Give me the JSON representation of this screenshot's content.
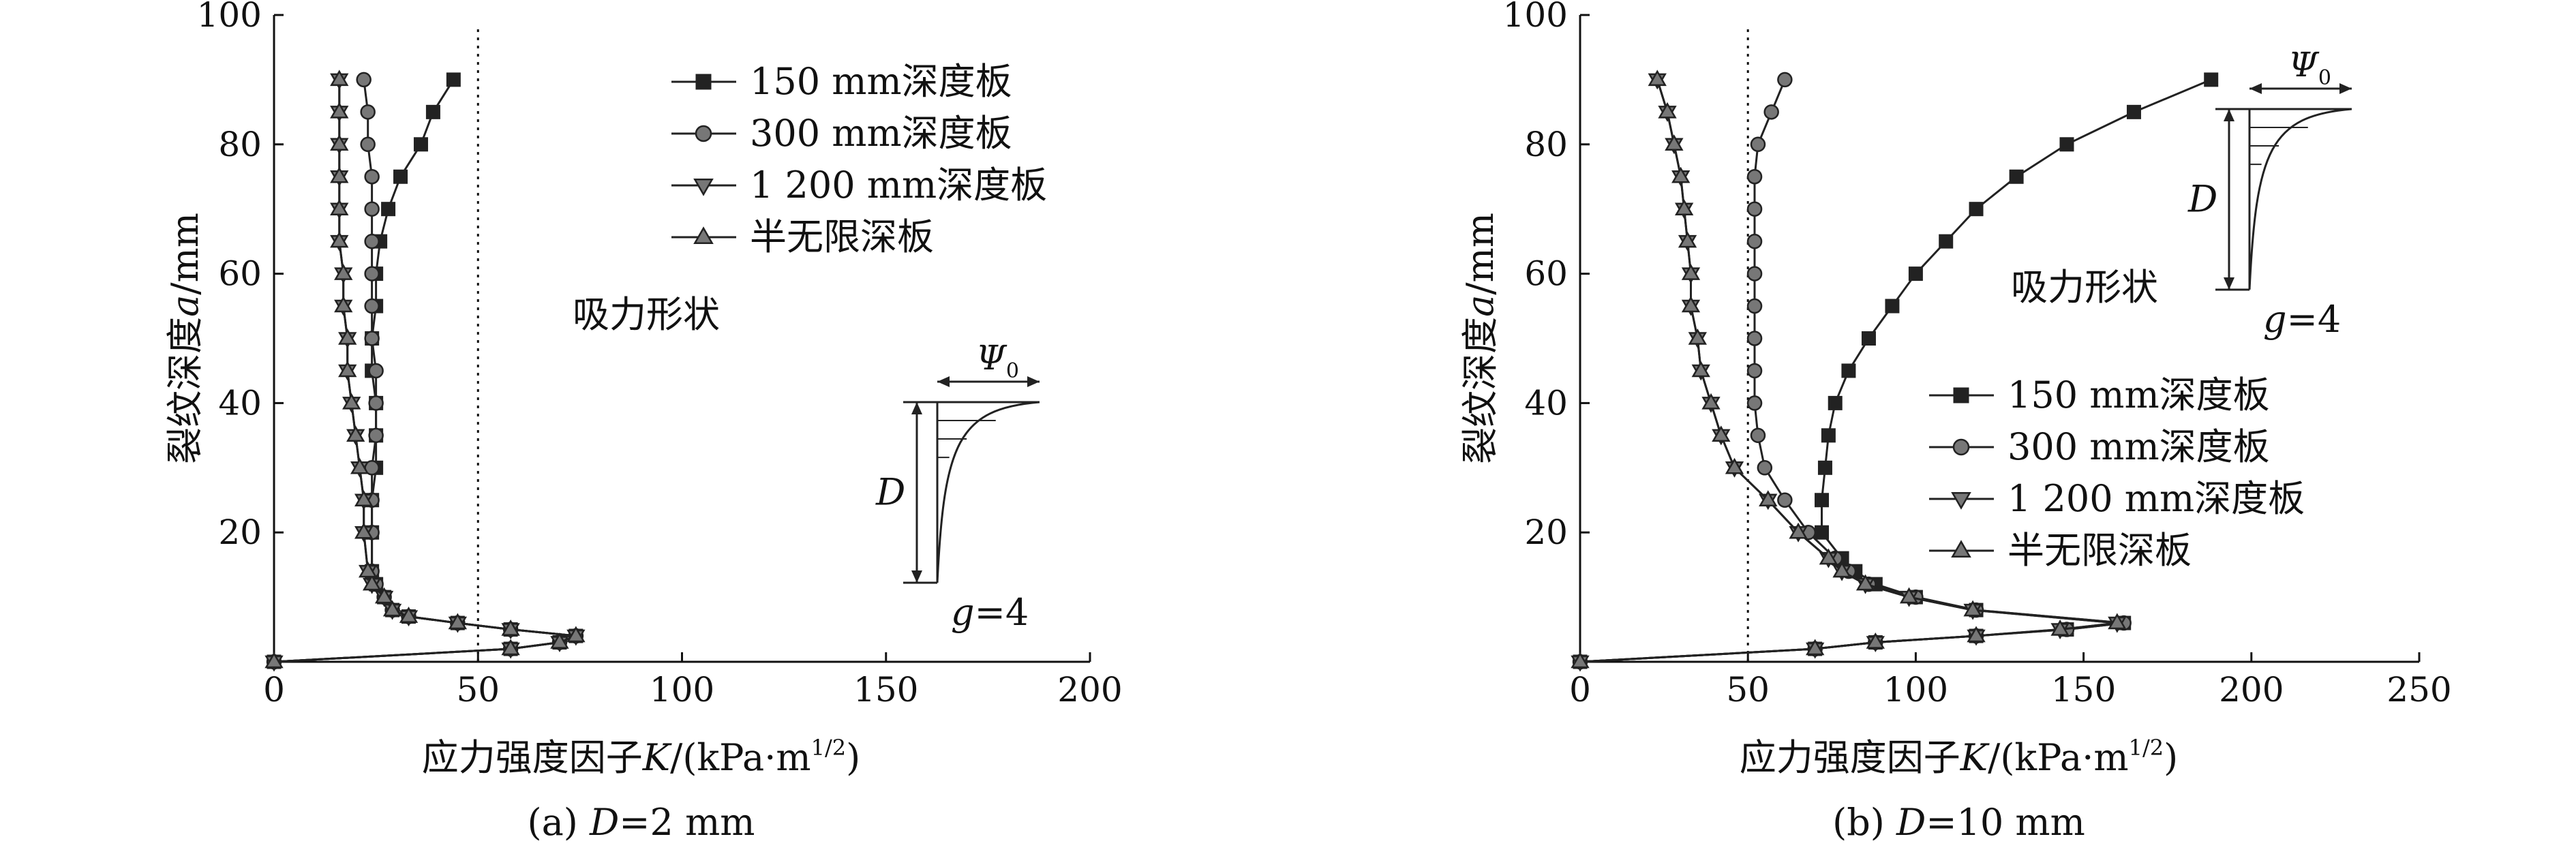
{
  "colors": {
    "axis": "#111111",
    "marker_fill": "#777777",
    "line": "#222222",
    "background": "#ffffff"
  },
  "chart_data": [
    {
      "type": "line",
      "panel": "a",
      "caption": {
        "prefix": "(a) ",
        "var": "D",
        "rest": "=2 mm"
      },
      "xlabel": {
        "main": "应力强度因子",
        "var": "K",
        "unit": "/(kPa·m",
        "sup": "1/2",
        "close": ")"
      },
      "ylabel": {
        "main": "裂纹深度",
        "var": "a",
        "unit": "/mm"
      },
      "xlim": [
        0,
        200
      ],
      "ylim": [
        0,
        100
      ],
      "xticks": [
        0,
        50,
        100,
        150,
        200
      ],
      "yticks": [
        20,
        40,
        60,
        80,
        100
      ],
      "reference_line_x": 50,
      "annotation": "吸力形状",
      "inset": {
        "psi_label": "Ψ",
        "psi_sub": "0",
        "d_label": "D",
        "g_label": "g",
        "g_value": "=4"
      },
      "legend_position": "top-right",
      "series": [
        {
          "name": "150 mm深度板",
          "marker": "square",
          "points": [
            [
              0,
              0
            ],
            [
              58,
              2
            ],
            [
              70,
              3
            ],
            [
              74,
              4
            ],
            [
              58,
              5
            ],
            [
              45,
              6
            ],
            [
              33,
              7
            ],
            [
              29,
              8
            ],
            [
              27,
              10
            ],
            [
              25,
              12
            ],
            [
              24,
              14
            ],
            [
              24,
              20
            ],
            [
              24,
              25
            ],
            [
              25,
              30
            ],
            [
              25,
              35
            ],
            [
              25,
              40
            ],
            [
              24,
              45
            ],
            [
              24,
              50
            ],
            [
              25,
              55
            ],
            [
              25,
              60
            ],
            [
              26,
              65
            ],
            [
              28,
              70
            ],
            [
              31,
              75
            ],
            [
              36,
              80
            ],
            [
              39,
              85
            ],
            [
              44,
              90
            ]
          ]
        },
        {
          "name": "300 mm深度板",
          "marker": "circle",
          "points": [
            [
              0,
              0
            ],
            [
              58,
              2
            ],
            [
              70,
              3
            ],
            [
              74,
              4
            ],
            [
              58,
              5
            ],
            [
              45,
              6
            ],
            [
              33,
              7
            ],
            [
              29,
              8
            ],
            [
              27,
              10
            ],
            [
              25,
              12
            ],
            [
              24,
              14
            ],
            [
              24,
              20
            ],
            [
              24,
              25
            ],
            [
              24,
              30
            ],
            [
              25,
              35
            ],
            [
              25,
              40
            ],
            [
              25,
              45
            ],
            [
              24,
              50
            ],
            [
              24,
              55
            ],
            [
              24,
              60
            ],
            [
              24,
              65
            ],
            [
              24,
              70
            ],
            [
              24,
              75
            ],
            [
              23,
              80
            ],
            [
              23,
              85
            ],
            [
              22,
              90
            ]
          ]
        },
        {
          "name": "1 200 mm深度板",
          "marker": "triangle-down",
          "points": [
            [
              0,
              0
            ],
            [
              58,
              2
            ],
            [
              70,
              3
            ],
            [
              74,
              4
            ],
            [
              58,
              5
            ],
            [
              45,
              6
            ],
            [
              33,
              7
            ],
            [
              29,
              8
            ],
            [
              27,
              10
            ],
            [
              24,
              12
            ],
            [
              23,
              14
            ],
            [
              22,
              20
            ],
            [
              22,
              25
            ],
            [
              21,
              30
            ],
            [
              20,
              35
            ],
            [
              19,
              40
            ],
            [
              18,
              45
            ],
            [
              18,
              50
            ],
            [
              17,
              55
            ],
            [
              17,
              60
            ],
            [
              16,
              65
            ],
            [
              16,
              70
            ],
            [
              16,
              75
            ],
            [
              16,
              80
            ],
            [
              16,
              85
            ],
            [
              16,
              90
            ]
          ]
        },
        {
          "name": "半无限深板",
          "marker": "triangle-up",
          "points": [
            [
              0,
              0
            ],
            [
              58,
              2
            ],
            [
              70,
              3
            ],
            [
              74,
              4
            ],
            [
              58,
              5
            ],
            [
              45,
              6
            ],
            [
              33,
              7
            ],
            [
              29,
              8
            ],
            [
              27,
              10
            ],
            [
              24,
              12
            ],
            [
              23,
              14
            ],
            [
              22,
              20
            ],
            [
              22,
              25
            ],
            [
              21,
              30
            ],
            [
              20,
              35
            ],
            [
              19,
              40
            ],
            [
              18,
              45
            ],
            [
              18,
              50
            ],
            [
              17,
              55
            ],
            [
              17,
              60
            ],
            [
              16,
              65
            ],
            [
              16,
              70
            ],
            [
              16,
              75
            ],
            [
              16,
              80
            ],
            [
              16,
              85
            ],
            [
              16,
              90
            ]
          ]
        }
      ]
    },
    {
      "type": "line",
      "panel": "b",
      "caption": {
        "prefix": "(b) ",
        "var": "D",
        "rest": "=10 mm"
      },
      "xlabel": {
        "main": "应力强度因子",
        "var": "K",
        "unit": "/(kPa·m",
        "sup": "1/2",
        "close": ")"
      },
      "ylabel": {
        "main": "裂纹深度",
        "var": "a",
        "unit": "/mm"
      },
      "xlim": [
        0,
        250
      ],
      "ylim": [
        0,
        100
      ],
      "xticks": [
        0,
        50,
        100,
        150,
        200,
        250
      ],
      "yticks": [
        20,
        40,
        60,
        80,
        100
      ],
      "reference_line_x": 50,
      "annotation": "吸力形状",
      "inset": {
        "psi_label": "Ψ",
        "psi_sub": "0",
        "d_label": "D",
        "g_label": "g",
        "g_value": "=4"
      },
      "legend_position": "center-right",
      "series": [
        {
          "name": "150 mm深度板",
          "marker": "square",
          "points": [
            [
              0,
              0
            ],
            [
              70,
              2
            ],
            [
              88,
              3
            ],
            [
              118,
              4
            ],
            [
              145,
              5
            ],
            [
              162,
              6
            ],
            [
              118,
              8
            ],
            [
              100,
              10
            ],
            [
              88,
              12
            ],
            [
              82,
              14
            ],
            [
              78,
              16
            ],
            [
              72,
              20
            ],
            [
              72,
              25
            ],
            [
              73,
              30
            ],
            [
              74,
              35
            ],
            [
              76,
              40
            ],
            [
              80,
              45
            ],
            [
              86,
              50
            ],
            [
              93,
              55
            ],
            [
              100,
              60
            ],
            [
              109,
              65
            ],
            [
              118,
              70
            ],
            [
              130,
              75
            ],
            [
              145,
              80
            ],
            [
              165,
              85
            ],
            [
              188,
              90
            ]
          ]
        },
        {
          "name": "300 mm深度板",
          "marker": "circle",
          "points": [
            [
              0,
              0
            ],
            [
              70,
              2
            ],
            [
              88,
              3
            ],
            [
              118,
              4
            ],
            [
              145,
              5
            ],
            [
              162,
              6
            ],
            [
              118,
              8
            ],
            [
              100,
              10
            ],
            [
              86,
              12
            ],
            [
              80,
              14
            ],
            [
              76,
              16
            ],
            [
              68,
              20
            ],
            [
              61,
              25
            ],
            [
              55,
              30
            ],
            [
              53,
              35
            ],
            [
              52,
              40
            ],
            [
              52,
              45
            ],
            [
              52,
              50
            ],
            [
              52,
              55
            ],
            [
              52,
              60
            ],
            [
              52,
              65
            ],
            [
              52,
              70
            ],
            [
              52,
              75
            ],
            [
              53,
              80
            ],
            [
              57,
              85
            ],
            [
              61,
              90
            ]
          ]
        },
        {
          "name": "1 200 mm深度板",
          "marker": "triangle-down",
          "points": [
            [
              0,
              0
            ],
            [
              70,
              2
            ],
            [
              88,
              3
            ],
            [
              118,
              4
            ],
            [
              143,
              5
            ],
            [
              160,
              6
            ],
            [
              117,
              8
            ],
            [
              98,
              10
            ],
            [
              85,
              12
            ],
            [
              78,
              14
            ],
            [
              74,
              16
            ],
            [
              65,
              20
            ],
            [
              56,
              25
            ],
            [
              46,
              30
            ],
            [
              42,
              35
            ],
            [
              39,
              40
            ],
            [
              36,
              45
            ],
            [
              35,
              50
            ],
            [
              33,
              55
            ],
            [
              33,
              60
            ],
            [
              32,
              65
            ],
            [
              31,
              70
            ],
            [
              30,
              75
            ],
            [
              28,
              80
            ],
            [
              26,
              85
            ],
            [
              23,
              90
            ]
          ]
        },
        {
          "name": "半无限深板",
          "marker": "triangle-up",
          "points": [
            [
              0,
              0
            ],
            [
              70,
              2
            ],
            [
              88,
              3
            ],
            [
              118,
              4
            ],
            [
              143,
              5
            ],
            [
              160,
              6
            ],
            [
              117,
              8
            ],
            [
              98,
              10
            ],
            [
              85,
              12
            ],
            [
              78,
              14
            ],
            [
              74,
              16
            ],
            [
              65,
              20
            ],
            [
              56,
              25
            ],
            [
              46,
              30
            ],
            [
              42,
              35
            ],
            [
              39,
              40
            ],
            [
              36,
              45
            ],
            [
              35,
              50
            ],
            [
              33,
              55
            ],
            [
              33,
              60
            ],
            [
              32,
              65
            ],
            [
              31,
              70
            ],
            [
              30,
              75
            ],
            [
              28,
              80
            ],
            [
              26,
              85
            ],
            [
              23,
              90
            ]
          ]
        }
      ]
    }
  ]
}
